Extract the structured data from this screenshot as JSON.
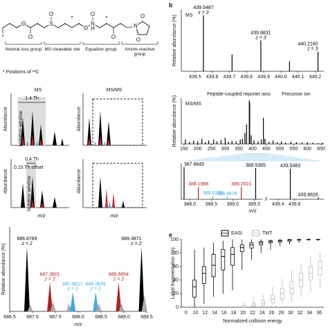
{
  "figure": {
    "atoms": [
      "*",
      "O",
      "O",
      "S",
      "O",
      "*",
      "O",
      "N",
      "H",
      "*",
      "O",
      "O",
      "N",
      "O",
      "O"
    ],
    "groups": [
      "Neutral loss group",
      "MS-cleavable site",
      "Equalizer group",
      "Amine-reactive group"
    ],
    "positions_note": "* Positions of ¹³C",
    "c_top": {
      "left": "MS",
      "right": "MS/MS",
      "width": "1.4 Th",
      "window": "Isolation window",
      "ylabel": "Abundance",
      "ylabel_right": "Abundance"
    },
    "c_bottom": {
      "width": "0.4 Th",
      "offset": "0.15 Th offset",
      "window": "Isolation window",
      "ylabel": "Abundance",
      "ylabel_right": "Abundance"
    },
    "c_xlabel": "m/z",
    "c_xlabel_right": "m/z"
  },
  "chart_data": [
    {
      "type": "spectrum",
      "style": "stem",
      "panel": "b",
      "label": "MS",
      "ylabel": "Relative abundance (%)",
      "xlim": [
        439.42,
        440.25
      ],
      "ylim": [
        0,
        110
      ],
      "xticks": [
        439.5,
        439.6,
        439.7,
        439.8,
        439.9,
        {
          "value": 440,
          "label": "440.0"
        },
        440.1,
        440.2
      ],
      "peaks": {
        "x": [
          439.5487,
          439.7155,
          439.8831,
          440.05,
          440.216
        ],
        "values": [
          100,
          30,
          55,
          18,
          35
        ],
        "x_labels": [
          "439.5487",
          null,
          "439.8831",
          null,
          "440.2160"
        ],
        "charges": [
          "z = 3",
          null,
          "z = 3",
          null,
          "z = 3"
        ]
      },
      "color": "#000000"
    },
    {
      "type": "spectrum",
      "style": "stem",
      "label": "MS/MS",
      "ylabel": "Relative abundance (%)",
      "annotations": [
        "Peptide-coupled reporter ions",
        "Precursor ion"
      ],
      "xlim": [
        140,
        660
      ],
      "ylim": [
        0,
        105
      ],
      "xticks": [
        150,
        200,
        250,
        300,
        350,
        400,
        450,
        500,
        550,
        600,
        650
      ],
      "peaks": {
        "x": [
          155,
          170,
          185,
          200,
          215,
          228,
          240,
          258,
          270,
          285,
          300,
          312,
          325,
          340,
          355,
          363,
          372,
          378,
          388,
          389.5,
          395,
          405,
          420,
          432,
          439.5,
          445,
          460,
          475,
          490,
          505,
          520,
          540,
          560,
          580,
          600,
          620,
          640,
          655
        ],
        "values": [
          10,
          5,
          8,
          6,
          12,
          4,
          8,
          10,
          6,
          9,
          14,
          5,
          7,
          6,
          10,
          12,
          25,
          45,
          100,
          95,
          20,
          8,
          6,
          10,
          60,
          12,
          5,
          8,
          4,
          6,
          3,
          5,
          4,
          3,
          4,
          3,
          2,
          3
        ]
      },
      "color": "#000000"
    },
    {
      "type": "spectrum",
      "style": "stem",
      "xlabel": "m/z",
      "xlim_segments": [
        [
          387.8,
          389.7
        ],
        [
          439.3,
          439.95
        ]
      ],
      "ylim": [
        0,
        112
      ],
      "xticks": [
        {
          "value": 388,
          "label": "388.0"
        },
        388.5,
        {
          "value": 389,
          "label": "389.0"
        },
        389.5,
        439.4,
        439.6
      ],
      "peaks": {
        "x": [
          387.8645,
          388.1988,
          388.5333,
          388.8679,
          389.2021,
          389.5365,
          439.5483,
          439.8826
        ],
        "values": [
          100,
          38,
          10,
          8,
          38,
          97,
          95,
          5
        ],
        "x_labels": [
          "387.8645",
          "388.1988",
          "388.5333",
          "388.8679",
          "389.2021",
          "389.5365",
          "439.5483",
          "439.8826"
        ],
        "colors": [
          "#000000",
          "#b22222",
          "#3fa9e0",
          "#3fa9e0",
          "#b22222",
          "#000000",
          "#000000",
          "#000000"
        ]
      }
    },
    {
      "type": "spectrum",
      "style": "peak",
      "ylabel": "Relative abundance (%)",
      "xlabel": "m/z",
      "xlim": [
        686.5,
        689.5
      ],
      "ylim": [
        0,
        130
      ],
      "xticks": [
        686.5,
        {
          "value": 687,
          "label": "687.0"
        },
        687.5,
        {
          "value": 688,
          "label": "688.0"
        },
        688.5,
        {
          "value": 689,
          "label": "689.0"
        },
        689.5
      ],
      "peaks": {
        "x": [
          686.8789,
          686.95,
          687.3801,
          687.45,
          687.8,
          687.8817,
          688.3839,
          688.45,
          688.8854,
          688.95,
          689.3871,
          689.45
        ],
        "values": [
          100,
          10,
          45,
          15,
          12,
          30,
          30,
          12,
          45,
          12,
          100,
          25
        ],
        "x_labels": [
          "686.8789",
          null,
          "687.3801",
          null,
          null,
          "687.8817",
          "688.3839",
          null,
          "688.8854",
          null,
          "689.3871",
          null
        ],
        "charges": [
          "z = 2",
          null,
          "z = 2",
          null,
          null,
          "z = 2",
          "z = 2",
          null,
          "z = 2",
          null,
          "z = 2",
          null
        ],
        "colors": [
          "#000000",
          "#aaaaaa",
          "#b22222",
          "#aaaaaa",
          "#aaaaaa",
          "#3fa9e0",
          "#3fa9e0",
          "#aaaaaa",
          "#b22222",
          "#aaaaaa",
          "#000000",
          "#aaaaaa"
        ]
      }
    },
    {
      "type": "box",
      "panel": "e",
      "ylabel": "Label fragmentation (%)",
      "xlabel": "Normalized collision energy",
      "categories": [
        "0",
        "10",
        "12",
        "14",
        "16",
        "18",
        "20",
        "22",
        "24",
        "26",
        "28",
        "30",
        "32",
        "34",
        "36"
      ],
      "ylim": [
        0,
        100
      ],
      "yticks": [
        0,
        20,
        40,
        60,
        80,
        100
      ],
      "series": [
        {
          "name": "EASI",
          "color": "#000000",
          "boxes": [
            null,
            [
              0,
              15,
              30,
              40,
              85
            ],
            [
              5,
              35,
              50,
              60,
              88
            ],
            [
              15,
              45,
              62,
              78,
              95
            ],
            [
              20,
              55,
              75,
              85,
              98
            ],
            [
              25,
              62,
              78,
              88,
              100
            ],
            [
              55,
              82,
              88,
              92,
              100
            ],
            [
              70,
              87,
              92,
              95,
              100
            ],
            [
              80,
              92,
              95,
              97,
              100
            ],
            [
              85,
              95,
              97,
              98,
              100
            ],
            [
              90,
              96,
              98,
              99,
              100
            ],
            [
              93,
              97,
              99,
              100,
              100
            ],
            [
              95,
              99,
              100,
              100,
              100
            ],
            [
              98,
              99.5,
              100,
              100,
              100
            ],
            [
              98,
              99.5,
              100,
              100,
              100
            ]
          ]
        },
        {
          "name": "TMT",
          "color": "#bbbbbb",
          "boxes": [
            null,
            null,
            null,
            null,
            null,
            null,
            [
              0,
              0,
              1,
              3,
              8
            ],
            [
              0,
              1,
              3,
              6,
              15
            ],
            [
              0,
              3,
              6,
              10,
              20
            ],
            [
              2,
              7,
              12,
              18,
              30
            ],
            [
              5,
              12,
              20,
              28,
              42
            ],
            [
              8,
              20,
              28,
              38,
              55
            ],
            [
              15,
              30,
              40,
              50,
              65
            ],
            [
              22,
              40,
              50,
              60,
              75
            ],
            [
              28,
              48,
              58,
              68,
              82
            ]
          ]
        }
      ]
    }
  ]
}
